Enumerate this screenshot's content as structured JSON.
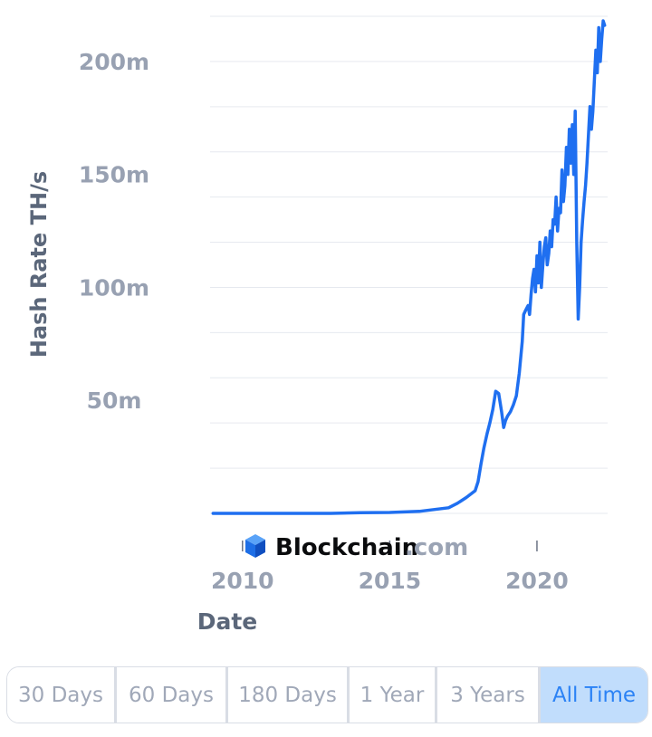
{
  "chart_data": {
    "type": "line",
    "xlabel": "Date",
    "ylabel": "Hash Rate TH/s",
    "xlim": [
      2008.9,
      2022.4
    ],
    "ylim": [
      0,
      220000000
    ],
    "x_ticks": [
      2010,
      2015,
      2020
    ],
    "x_tick_labels": [
      "2010",
      "2015",
      "2020"
    ],
    "y_ticks": [
      50000000,
      100000000,
      150000000,
      200000000
    ],
    "y_tick_labels": [
      "50m",
      "100m",
      "150m",
      "200m"
    ],
    "grid": "horizontal",
    "line_color": "#1f6ff0",
    "series": [
      {
        "x": [
          2009.0,
          2013.0,
          2014.0,
          2015.0,
          2016.0,
          2016.5,
          2017.0,
          2017.3,
          2017.6,
          2017.9,
          2018.0,
          2018.1,
          2018.2,
          2018.3,
          2018.4,
          2018.5,
          2018.6,
          2018.7,
          2018.8,
          2018.87,
          2018.93,
          2019.0,
          2019.1,
          2019.2,
          2019.3,
          2019.4,
          2019.5,
          2019.55,
          2019.62,
          2019.7,
          2019.75,
          2019.8,
          2019.85,
          2019.9,
          2019.95,
          2020.0,
          2020.05,
          2020.1,
          2020.15,
          2020.2,
          2020.25,
          2020.3,
          2020.35,
          2020.4,
          2020.45,
          2020.5,
          2020.55,
          2020.6,
          2020.65,
          2020.7,
          2020.75,
          2020.8,
          2020.85,
          2020.9,
          2020.95,
          2021.0,
          2021.05,
          2021.1,
          2021.15,
          2021.2,
          2021.25,
          2021.3,
          2021.35,
          2021.4,
          2021.45,
          2021.5,
          2021.55,
          2021.6,
          2021.65,
          2021.7,
          2021.75,
          2021.8,
          2021.85,
          2021.9,
          2021.95,
          2022.0,
          2022.05,
          2022.1,
          2022.15,
          2022.2,
          2022.25,
          2022.3
        ],
        "y": [
          0,
          1000,
          300000,
          400000,
          900000,
          1700000,
          2500000,
          4500000,
          7000000,
          10000000,
          14000000,
          22000000,
          29000000,
          35000000,
          40000000,
          46000000,
          54000000,
          53000000,
          45000000,
          38000000,
          41000000,
          43000000,
          45000000,
          48000000,
          52000000,
          62000000,
          76000000,
          88000000,
          90000000,
          92000000,
          88000000,
          97000000,
          104000000,
          108000000,
          98000000,
          114000000,
          102000000,
          120000000,
          100000000,
          110000000,
          118000000,
          122000000,
          110000000,
          115000000,
          125000000,
          118000000,
          130000000,
          128000000,
          140000000,
          125000000,
          135000000,
          133000000,
          152000000,
          138000000,
          145000000,
          162000000,
          150000000,
          170000000,
          155000000,
          172000000,
          150000000,
          178000000,
          120000000,
          86000000,
          100000000,
          120000000,
          130000000,
          138000000,
          145000000,
          155000000,
          168000000,
          180000000,
          170000000,
          178000000,
          192000000,
          205000000,
          195000000,
          215000000,
          200000000,
          210000000,
          218000000,
          216000000
        ]
      }
    ]
  },
  "brand": {
    "name": "Blockchain",
    "suffix": ".com",
    "icon": "blockchain-logo-icon",
    "color_dark": "#0a0b0d",
    "color_light": "#9aa3b4",
    "icon_color": "#1d6ee6"
  },
  "range_selector": {
    "buttons": [
      "30 Days",
      "60 Days",
      "180 Days",
      "1 Year",
      "3 Years",
      "All Time"
    ],
    "active": "All Time"
  }
}
